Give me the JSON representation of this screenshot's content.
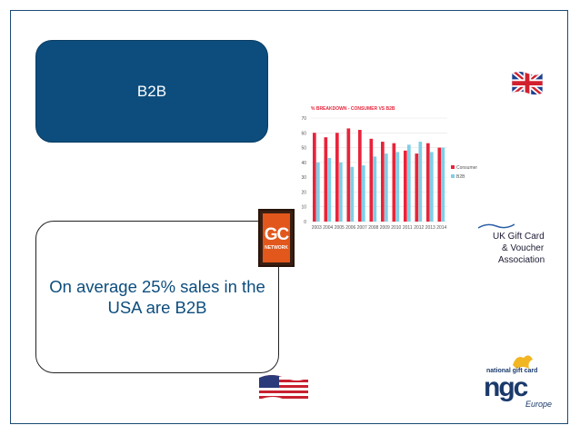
{
  "slide": {
    "heading": "B2B",
    "statement": "On average 25% sales in the USA are B2B"
  },
  "logos": {
    "gc_network": {
      "big": "GC",
      "small": "NETWORK"
    },
    "ukgc": {
      "line1": "UK Gift Card",
      "line2": "& Voucher",
      "line3": "Association"
    },
    "ngc": {
      "name": "national gift card",
      "mark": "ngc",
      "sub": "Europe"
    }
  },
  "colors": {
    "heading_box": "#0c4d7d",
    "consumer": "#e8243a",
    "b2b": "#7fcfe6"
  },
  "chart_data": {
    "type": "bar",
    "title": "% BREAKDOWN - CONSUMER VS B2B",
    "categories": [
      "2003",
      "2004",
      "2005",
      "2006",
      "2007",
      "2008",
      "2009",
      "2010",
      "2011",
      "2012",
      "2013",
      "2014"
    ],
    "series": [
      {
        "name": "Consumer",
        "values": [
          60,
          57,
          60,
          63,
          62,
          56,
          54,
          53,
          48,
          46,
          53,
          50
        ],
        "color": "#e8243a"
      },
      {
        "name": "B2B",
        "values": [
          40,
          43,
          40,
          37,
          38,
          44,
          46,
          47,
          52,
          54,
          47,
          50
        ],
        "color": "#7fcfe6"
      }
    ],
    "ylim": [
      0,
      70
    ],
    "yticks": [
      0,
      10,
      20,
      30,
      40,
      50,
      60,
      70
    ],
    "grid": true,
    "legend": "right"
  }
}
